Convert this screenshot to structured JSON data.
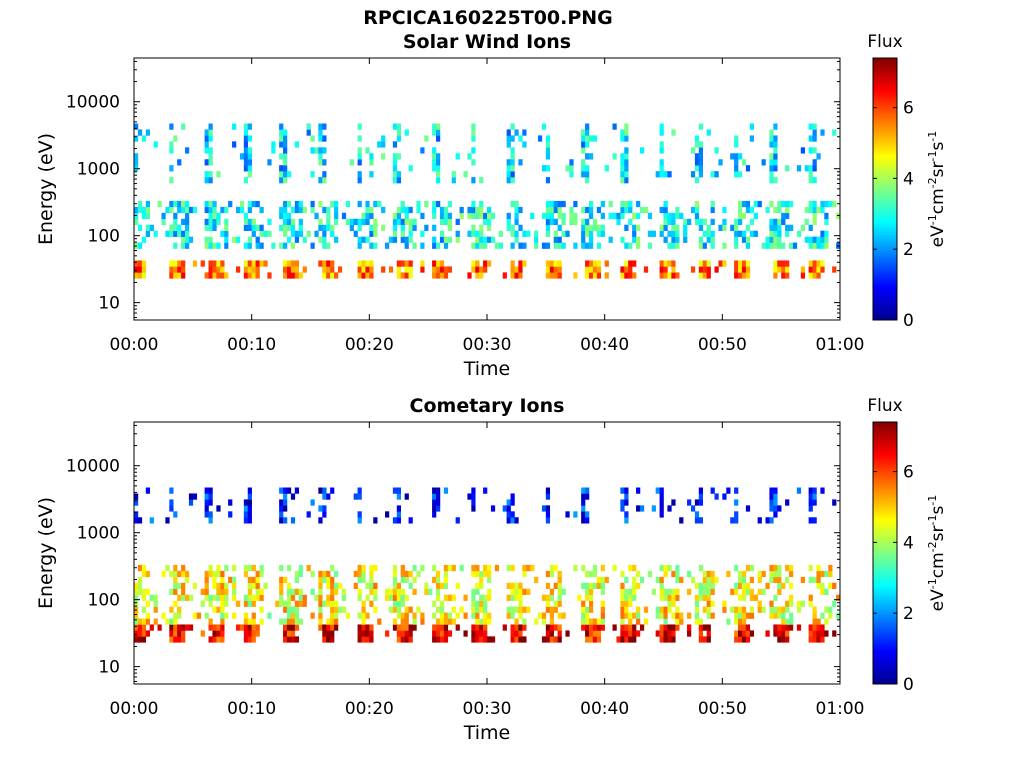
{
  "figure_title": "RPCICA160225T00.PNG",
  "colormap": [
    "#00008f",
    "#0000ff",
    "#0080ff",
    "#00ffff",
    "#80ff80",
    "#ffff00",
    "#ff8000",
    "#ff0000",
    "#800000"
  ],
  "chart_data": [
    {
      "type": "heatmap",
      "title": "Solar Wind Ions",
      "xlabel": "Time",
      "ylabel": "Energy (eV)",
      "xticks": [
        "00:00",
        "00:10",
        "00:20",
        "00:30",
        "00:40",
        "00:50",
        "01:00"
      ],
      "xlim_minutes": [
        0,
        60
      ],
      "yscale": "log",
      "ylim": [
        5.5,
        45000
      ],
      "yticks": [
        10,
        100,
        1000,
        10000
      ],
      "yticklabels": [
        "10",
        "100",
        "1000",
        "10000"
      ],
      "colorbar": {
        "title": "Flux",
        "label": "eV-1cm-2sr-1s-1",
        "ticks": [
          "0",
          "2",
          "4",
          "6"
        ],
        "range": [
          0,
          7.4
        ]
      },
      "cycle_period_minutes": 3.2,
      "bands": [
        {
          "name": "high-energy streak",
          "energy_min": 600,
          "energy_max": 4500,
          "flux": 2.6
        },
        {
          "name": "mid energy",
          "energy_min": 60,
          "energy_max": 300,
          "flux": 2.8
        },
        {
          "name": "low-energy peak",
          "energy_min": 22,
          "energy_max": 45,
          "flux": 5.5
        }
      ]
    },
    {
      "type": "heatmap",
      "title": "Cometary Ions",
      "xlabel": "Time",
      "ylabel": "Energy (eV)",
      "xticks": [
        "00:00",
        "00:10",
        "00:20",
        "00:30",
        "00:40",
        "00:50",
        "01:00"
      ],
      "xlim_minutes": [
        0,
        60
      ],
      "yscale": "log",
      "ylim": [
        5.5,
        45000
      ],
      "yticks": [
        10,
        100,
        1000,
        10000
      ],
      "yticklabels": [
        "10",
        "100",
        "1000",
        "10000"
      ],
      "colorbar": {
        "title": "Flux",
        "label": "eV-1cm-2sr-1s-1",
        "ticks": [
          "0",
          "2",
          "4",
          "6"
        ],
        "range": [
          0,
          7.4
        ]
      },
      "cycle_period_minutes": 3.2,
      "bands": [
        {
          "name": "high-energy sparse",
          "energy_min": 1500,
          "energy_max": 5000,
          "flux": 1.0
        },
        {
          "name": "broad cometary",
          "energy_min": 40,
          "energy_max": 350,
          "flux": 4.6
        },
        {
          "name": "low-energy peak",
          "energy_min": 22,
          "energy_max": 45,
          "flux": 6.6
        }
      ]
    }
  ]
}
